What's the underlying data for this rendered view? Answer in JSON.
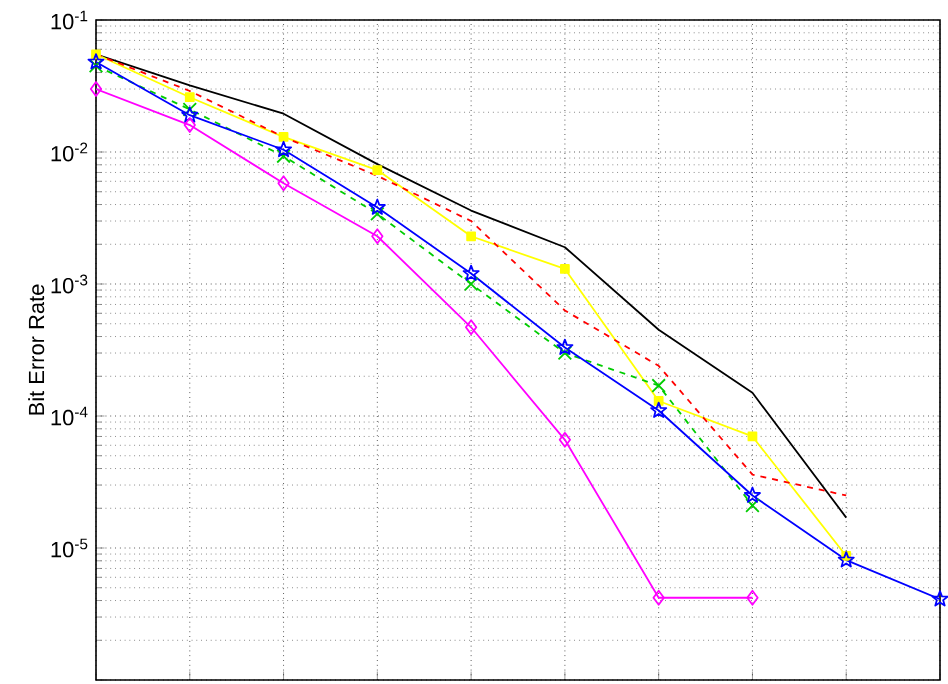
{
  "chart_data": {
    "type": "line",
    "ylabel": "Bit Error Rate",
    "log": "y",
    "grid": true,
    "categories": [
      null,
      null,
      null,
      null,
      null,
      null,
      null,
      null,
      null,
      null
    ],
    "ylim": [
      1e-06,
      0.1
    ],
    "yticks": [
      {
        "value": 0.1,
        "label": "10$^{-1}$"
      },
      {
        "value": 0.01,
        "label": "10$^{-2}$"
      },
      {
        "value": 0.001,
        "label": "10$^{-3}$"
      },
      {
        "value": 0.0001,
        "label": "10$^{-4}$"
      },
      {
        "value": 1e-05,
        "label": "10$^{-5}$"
      },
      {
        "value": 1e-06,
        "label": null
      }
    ],
    "series": [
      {
        "color": "#000000",
        "marker": "none",
        "line_style": "solid",
        "values": [
          0.055,
          0.032,
          0.0195,
          0.0081,
          0.0036,
          0.0019,
          0.00045,
          0.00015,
          1.7e-05,
          null
        ]
      },
      {
        "color": "#ffff00",
        "marker": "square",
        "line_style": "solid",
        "values": [
          0.055,
          0.026,
          0.013,
          0.0073,
          0.0023,
          0.0013,
          0.00013,
          7e-05,
          8.7e-06,
          null
        ]
      },
      {
        "color": "#ff0000",
        "marker": "none",
        "line_style": "dashed",
        "values": [
          0.055,
          0.029,
          0.013,
          0.0066,
          0.003,
          0.00063,
          0.00024,
          3.6e-05,
          2.5e-05,
          null
        ]
      },
      {
        "color": "#00cc00",
        "marker": "cross",
        "line_style": "dashed",
        "values": [
          0.045,
          0.021,
          0.0093,
          0.0034,
          0.001,
          0.0003,
          0.00017,
          2.1e-05,
          null,
          null
        ]
      },
      {
        "color": "#0000ff",
        "marker": "star",
        "line_style": "solid",
        "values": [
          0.048,
          0.019,
          0.0104,
          0.0038,
          0.0012,
          0.00033,
          0.00011,
          2.5e-05,
          8.1e-06,
          4.1e-06
        ]
      },
      {
        "color": "#ff00ff",
        "marker": "diamond",
        "line_style": "solid",
        "values": [
          0.03,
          0.016,
          0.0058,
          0.0023,
          0.00047,
          6.6e-05,
          4.2e-06,
          4.2e-06,
          null,
          null
        ]
      }
    ]
  }
}
